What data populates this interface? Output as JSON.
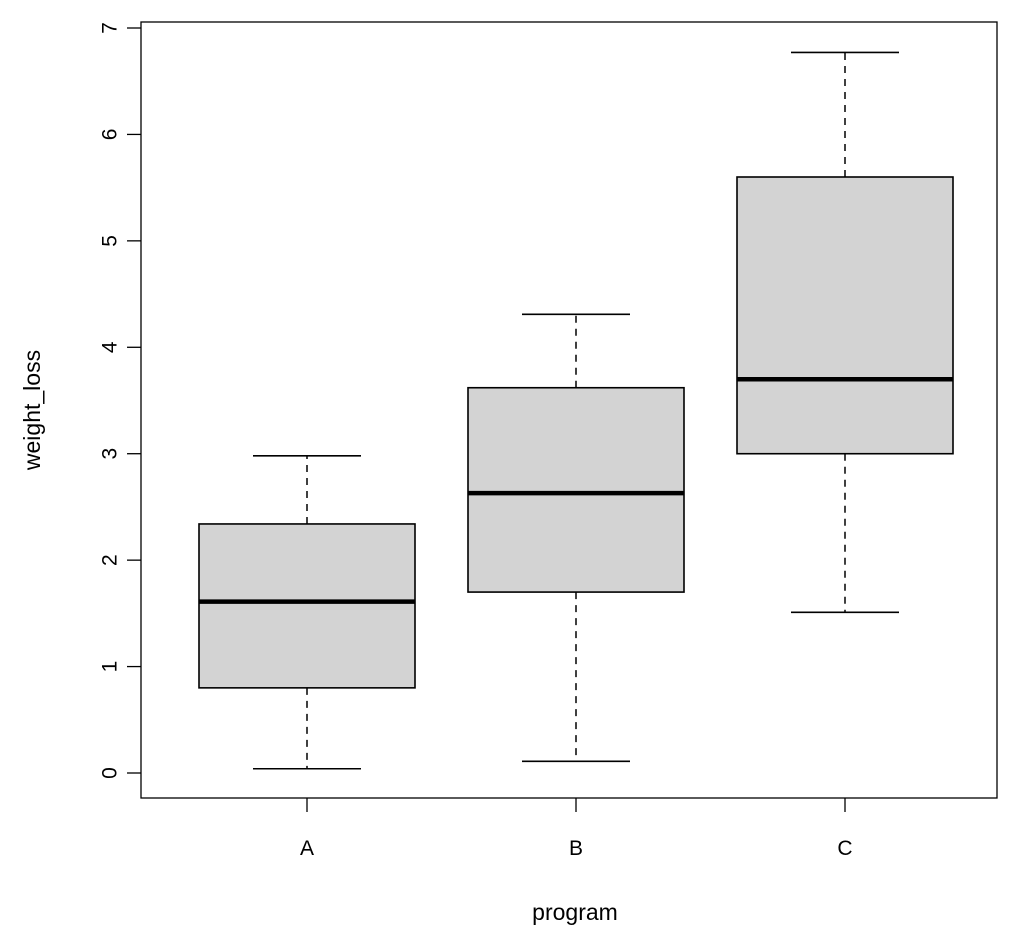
{
  "chart_data": {
    "type": "boxplot",
    "title": "",
    "xlabel": "program",
    "ylabel": "weight_loss",
    "categories": [
      "A",
      "B",
      "C"
    ],
    "ylim": [
      0,
      7
    ],
    "y_ticks": [
      0,
      1,
      2,
      3,
      4,
      5,
      6,
      7
    ],
    "grid": false,
    "box_fill": "#d3d3d3",
    "boxes": [
      {
        "category": "A",
        "min": 0.04,
        "q1": 0.8,
        "median": 1.61,
        "q3": 2.34,
        "max": 2.98
      },
      {
        "category": "B",
        "min": 0.11,
        "q1": 1.7,
        "median": 2.63,
        "q3": 3.62,
        "max": 4.31
      },
      {
        "category": "C",
        "min": 1.51,
        "q1": 3.0,
        "median": 3.7,
        "q3": 5.6,
        "max": 6.77
      }
    ]
  }
}
